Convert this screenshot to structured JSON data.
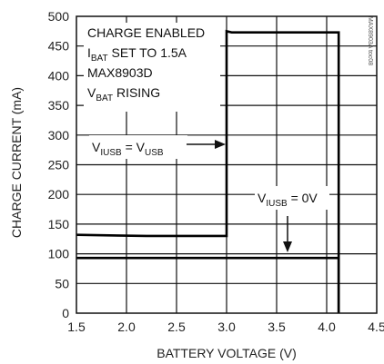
{
  "chart_data": {
    "type": "line",
    "xlabel": "BATTERY VOLTAGE (V)",
    "ylabel": "CHARGE CURRENT (mA)",
    "xlim": [
      1.5,
      4.5
    ],
    "ylim": [
      0,
      500
    ],
    "xticks": [
      "1.5",
      "2.0",
      "2.5",
      "3.0",
      "3.5",
      "4.0",
      "4.5"
    ],
    "yticks": [
      "0",
      "50",
      "100",
      "150",
      "200",
      "250",
      "300",
      "350",
      "400",
      "450",
      "500"
    ],
    "grid": true,
    "series": [
      {
        "x": [
          1.5,
          2.2,
          3.0,
          3.0,
          3.05,
          4.1,
          4.12,
          4.12
        ],
        "y": [
          132,
          130,
          130,
          475,
          473,
          473,
          473,
          0
        ]
      },
      {
        "x": [
          1.5,
          4.12,
          4.12
        ],
        "y": [
          93,
          93,
          0
        ]
      }
    ],
    "annotations": {
      "box": [
        {
          "text": "CHARGE ENABLED"
        },
        {
          "main": "I",
          "sub": "BAT",
          "rest": " SET TO 1.5A"
        },
        {
          "text": "MAX8903D"
        },
        {
          "main": "V",
          "sub": "BAT",
          "rest": " RISING"
        }
      ],
      "label1": {
        "a": "V",
        "asub": "IUSB",
        "b": " = V",
        "bsub": "USB"
      },
      "label2": {
        "a": "V",
        "asub": "IUSB",
        "b": " = 0V"
      }
    },
    "watermark": "MAX8903A toc08"
  }
}
